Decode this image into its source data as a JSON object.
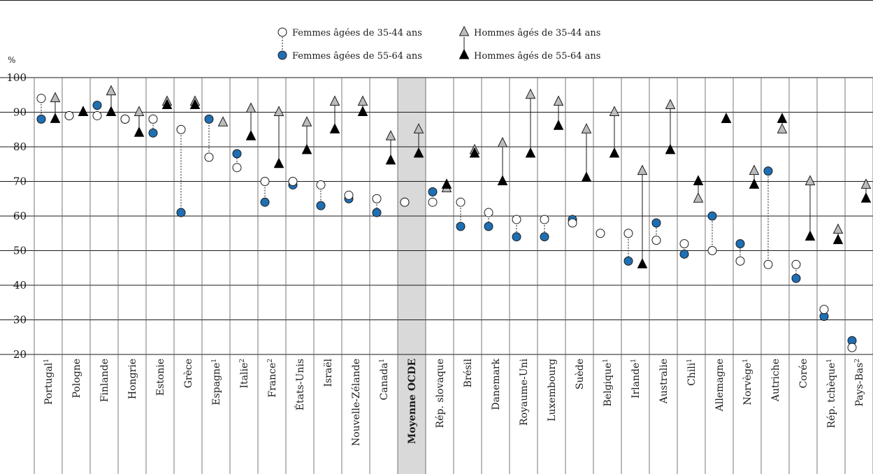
{
  "chart_data": {
    "type": "scatter",
    "ylabel": "%",
    "ylim": [
      20,
      100
    ],
    "yticks": [
      20,
      30,
      40,
      50,
      60,
      70,
      80,
      90,
      100
    ],
    "grid": true,
    "legend_position": "top-center",
    "highlight_category": "Moyenne OCDE",
    "highlight_band_color": "#d9d9d9",
    "categories": [
      {
        "label": "Portugal",
        "sup": "1"
      },
      {
        "label": "Pologne",
        "sup": ""
      },
      {
        "label": "Finlande",
        "sup": ""
      },
      {
        "label": "Hongrie",
        "sup": ""
      },
      {
        "label": "Estonie",
        "sup": ""
      },
      {
        "label": "Grèce",
        "sup": ""
      },
      {
        "label": "Espagne",
        "sup": "1"
      },
      {
        "label": "Italie",
        "sup": "2"
      },
      {
        "label": "France",
        "sup": "2"
      },
      {
        "label": "États-Unis",
        "sup": ""
      },
      {
        "label": "Israël",
        "sup": ""
      },
      {
        "label": "Nouvelle-Zélande",
        "sup": ""
      },
      {
        "label": "Canada",
        "sup": "1"
      },
      {
        "label": "Moyenne OCDE",
        "sup": ""
      },
      {
        "label": "Rép. slovaque",
        "sup": ""
      },
      {
        "label": "Brésil",
        "sup": ""
      },
      {
        "label": "Danemark",
        "sup": ""
      },
      {
        "label": "Royaume-Uni",
        "sup": ""
      },
      {
        "label": "Luxembourg",
        "sup": ""
      },
      {
        "label": "Suède",
        "sup": ""
      },
      {
        "label": "Belgique",
        "sup": "1"
      },
      {
        "label": "Irlande",
        "sup": "1"
      },
      {
        "label": "Australie",
        "sup": ""
      },
      {
        "label": "Chili",
        "sup": "1"
      },
      {
        "label": "Allemagne",
        "sup": ""
      },
      {
        "label": "Norvège",
        "sup": "1"
      },
      {
        "label": "Autriche",
        "sup": ""
      },
      {
        "label": "Corée",
        "sup": ""
      },
      {
        "label": "Rép. tchèque",
        "sup": "1"
      },
      {
        "label": "Pays-Bas",
        "sup": "2"
      }
    ],
    "series": [
      {
        "name": "Femmes âgées de 35-44 ans",
        "marker": "circle-open",
        "color": "#ffffff",
        "stroke": "#1a1a1a",
        "values": [
          94,
          89,
          89,
          88,
          88,
          85,
          77,
          74,
          70,
          70,
          69,
          66,
          65,
          64,
          64,
          64,
          61,
          59,
          59,
          58,
          55,
          55,
          53,
          52,
          50,
          47,
          46,
          46,
          33,
          22
        ]
      },
      {
        "name": "Femmes âgées de 55-64 ans",
        "marker": "circle-filled",
        "color": "#1f6fb3",
        "stroke": "#1a1a1a",
        "values": [
          88,
          89,
          92,
          88,
          84,
          61,
          88,
          78,
          64,
          69,
          63,
          65,
          61,
          64,
          67,
          57,
          57,
          54,
          54,
          59,
          null,
          47,
          58,
          49,
          60,
          52,
          73,
          42,
          31,
          24
        ]
      },
      {
        "name": "Hommes âgés de 35-44 ans",
        "marker": "triangle-open",
        "color": "#bcbcbc",
        "stroke": "#1a1a1a",
        "values": [
          94,
          90,
          96,
          90,
          93,
          93,
          87,
          91,
          90,
          87,
          93,
          93,
          83,
          85,
          68,
          79,
          81,
          95,
          93,
          85,
          90,
          73,
          92,
          65,
          88,
          73,
          85,
          70,
          56,
          69
        ]
      },
      {
        "name": "Hommes âgés de 55-64 ans",
        "marker": "triangle-filled",
        "color": "#000000",
        "stroke": "#000000",
        "values": [
          88,
          90,
          90,
          84,
          92,
          92,
          null,
          83,
          75,
          79,
          85,
          90,
          76,
          78,
          69,
          78,
          70,
          78,
          86,
          71,
          78,
          46,
          79,
          70,
          88,
          69,
          88,
          54,
          53,
          65
        ]
      }
    ]
  }
}
